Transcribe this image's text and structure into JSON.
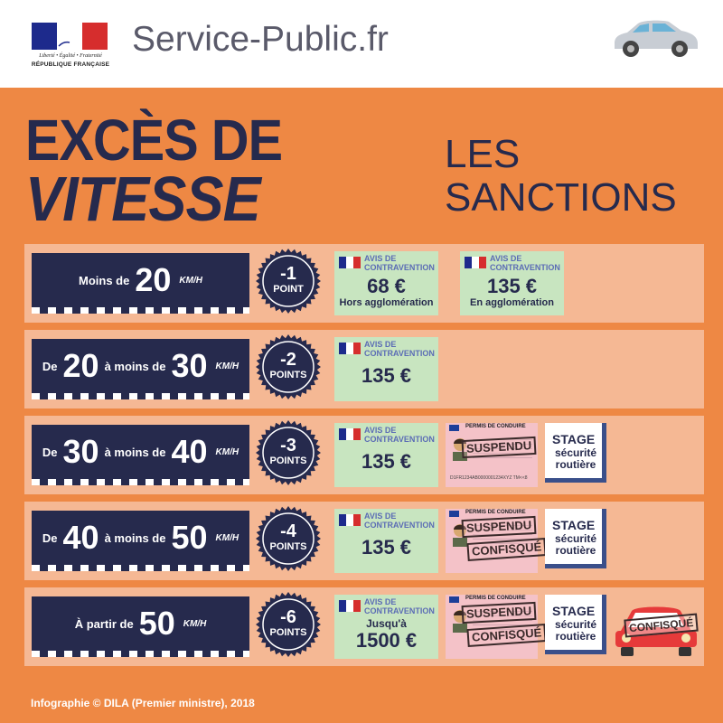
{
  "header": {
    "site_name": "Service-Public.fr",
    "motto": "Liberté • Égalité • Fraternité",
    "republic": "RÉPUBLIQUE FRANÇAISE"
  },
  "title": {
    "line1": "EXCÈS DE",
    "line2": "VITESSE"
  },
  "subtitle": {
    "line1": "LES",
    "line2": "SANCTIONS"
  },
  "labels": {
    "fine_header_1": "AVIS DE",
    "fine_header_2": "CONTRAVENTION",
    "license_header": "PERMIS DE CONDUIRE",
    "license_mrz": "D1FR1234AB0000001234XYZ TM<<8",
    "stage_title": "STAGE",
    "stage_line1": "sécurité",
    "stage_line2": "routière",
    "suspended": "SUSPENDU",
    "confiscated": "CONFISQUÉ",
    "km_h": "KM/H"
  },
  "rows": [
    {
      "pre": "Moins de",
      "speed1": "20",
      "mid": "",
      "speed2": "",
      "points_value": "-1",
      "points_label": "POINT",
      "fines": [
        {
          "amount": "68 €",
          "note": "Hors agglomération"
        },
        {
          "amount": "135 €",
          "note": "En agglomération"
        }
      ]
    },
    {
      "pre": "De",
      "speed1": "20",
      "mid": "à moins de",
      "speed2": "30",
      "points_value": "-2",
      "points_label": "POINTS",
      "fines": [
        {
          "amount": "135 €"
        }
      ]
    },
    {
      "pre": "De",
      "speed1": "30",
      "mid": "à moins de",
      "speed2": "40",
      "points_value": "-3",
      "points_label": "POINTS",
      "fines": [
        {
          "amount": "135 €"
        }
      ]
    },
    {
      "pre": "De",
      "speed1": "40",
      "mid": "à moins de",
      "speed2": "50",
      "points_value": "-4",
      "points_label": "POINTS",
      "fines": [
        {
          "amount": "135 €"
        }
      ]
    },
    {
      "pre": "À partir de",
      "speed1": "50",
      "mid": "",
      "speed2": "",
      "points_value": "-6",
      "points_label": "POINTS",
      "fines": [
        {
          "prefix": "Jusqu'à",
          "amount": "1500 €"
        }
      ]
    }
  ],
  "credit": "Infographie © DILA (Premier ministre), 2018",
  "colors": {
    "navy": "#262a4d",
    "orange": "#ee8844",
    "row_bg": "#f5b894",
    "fine_bg": "#c8e5c0",
    "license_bg": "#f4c2c8",
    "car_red": "#e63a3a"
  },
  "icons": [
    "marianne-logo-icon",
    "car-icon",
    "french-flag-icon",
    "license-face-icon",
    "confiscated-car-icon"
  ]
}
